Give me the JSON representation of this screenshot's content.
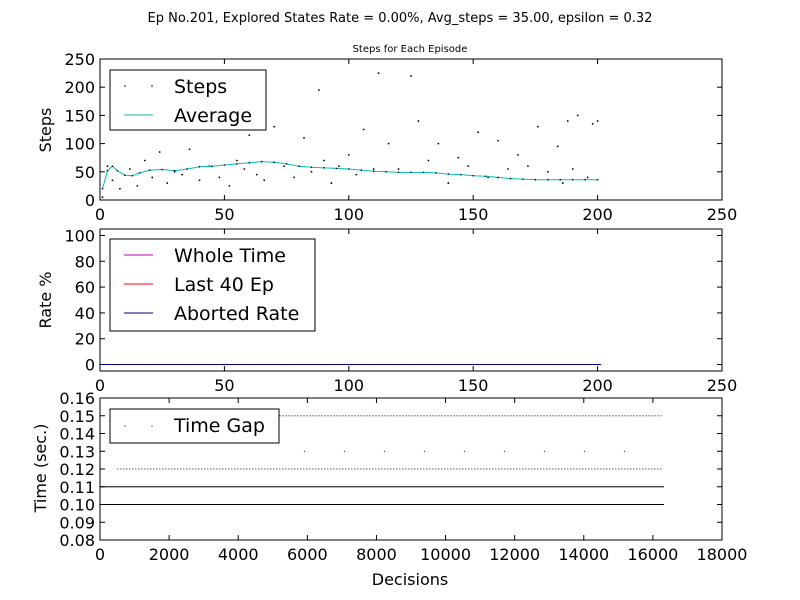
{
  "suptitle": "Ep No.201,  Explored States Rate = 0.00%,  Avg_steps = 35.00, epsilon = 0.32",
  "chart_data": [
    {
      "type": "scatter",
      "title": "Steps for Each Episode",
      "xlabel": "",
      "ylabel": "Steps",
      "xlim": [
        0,
        250
      ],
      "ylim": [
        0,
        250
      ],
      "xticks": [
        "0",
        "50",
        "100",
        "150",
        "200",
        "250"
      ],
      "yticks": [
        "0",
        "50",
        "100",
        "150",
        "200",
        "250"
      ],
      "legend_position": "upper-left",
      "grid": false,
      "series": [
        {
          "name": "Steps",
          "style": "points",
          "color": "#000000",
          "x": [
            1,
            3,
            5,
            8,
            12,
            15,
            18,
            21,
            24,
            27,
            30,
            33,
            36,
            40,
            44,
            48,
            52,
            55,
            58,
            60,
            63,
            66,
            70,
            74,
            78,
            82,
            85,
            88,
            90,
            93,
            96,
            100,
            103,
            106,
            110,
            112,
            116,
            120,
            125,
            128,
            132,
            136,
            140,
            144,
            148,
            152,
            156,
            160,
            164,
            168,
            172,
            176,
            180,
            184,
            186,
            188,
            190,
            192,
            196,
            198,
            200
          ],
          "y": [
            5,
            60,
            35,
            20,
            55,
            25,
            70,
            40,
            85,
            30,
            50,
            45,
            90,
            35,
            60,
            40,
            25,
            70,
            55,
            115,
            45,
            35,
            130,
            60,
            40,
            110,
            50,
            195,
            70,
            30,
            60,
            80,
            45,
            125,
            55,
            225,
            100,
            55,
            220,
            140,
            70,
            100,
            30,
            75,
            60,
            120,
            40,
            105,
            55,
            80,
            60,
            130,
            50,
            95,
            30,
            140,
            55,
            150,
            40,
            135,
            140
          ]
        },
        {
          "name": "Average",
          "style": "line",
          "color": "#00bfbf",
          "x": [
            1,
            3,
            5,
            7,
            10,
            13,
            16,
            20,
            25,
            30,
            35,
            40,
            45,
            50,
            55,
            60,
            65,
            70,
            75,
            80,
            85,
            90,
            95,
            100,
            105,
            110,
            115,
            120,
            125,
            130,
            135,
            140,
            145,
            150,
            155,
            160,
            165,
            170,
            175,
            180,
            185,
            190,
            195,
            200
          ],
          "y": [
            20,
            52,
            60,
            52,
            44,
            43,
            48,
            53,
            54,
            52,
            55,
            59,
            60,
            62,
            64,
            66,
            68,
            67,
            64,
            60,
            58,
            57,
            56,
            55,
            53,
            51,
            50,
            49,
            49,
            49,
            48,
            46,
            45,
            43,
            42,
            40,
            38,
            37,
            36,
            36,
            36,
            36,
            36,
            36
          ]
        }
      ]
    },
    {
      "type": "line",
      "title": "",
      "xlabel": "",
      "ylabel": "Rate %",
      "xlim": [
        0,
        250
      ],
      "ylim": [
        -5,
        105
      ],
      "xticks": [
        "0",
        "50",
        "100",
        "150",
        "200",
        "250"
      ],
      "yticks": [
        "0",
        "20",
        "40",
        "60",
        "80",
        "100"
      ],
      "legend_position": "upper-left",
      "grid": false,
      "series": [
        {
          "name": "Whole Time",
          "color": "#bf00bf",
          "x": [
            1,
            201
          ],
          "y": [
            0,
            0
          ]
        },
        {
          "name": "Last 40 Ep",
          "color": "#ff0000",
          "x": [
            1,
            201
          ],
          "y": [
            0,
            0
          ]
        },
        {
          "name": "Aborted Rate",
          "color": "#000080",
          "x": [
            1,
            201
          ],
          "y": [
            0,
            0
          ]
        }
      ]
    },
    {
      "type": "scatter",
      "title": "",
      "xlabel": "Decisions",
      "ylabel": "Time (sec.)",
      "xlim": [
        0,
        18000
      ],
      "ylim": [
        0.08,
        0.16
      ],
      "xticks": [
        "0",
        "2000",
        "4000",
        "6000",
        "8000",
        "10000",
        "12000",
        "14000",
        "16000",
        "18000"
      ],
      "yticks": [
        "0.08",
        "0.09",
        "0.10",
        "0.11",
        "0.12",
        "0.13",
        "0.14",
        "0.15",
        "0.16"
      ],
      "legend_position": "upper-left",
      "grid": false,
      "series": [
        {
          "name": "Time Gap",
          "style": "points",
          "color": "#000000",
          "levels": [
            {
              "y": 0.15,
              "x_range": [
                4500,
                16300
              ]
            },
            {
              "y": 0.12,
              "x_range": [
                500,
                16300
              ]
            },
            {
              "y": 0.13,
              "x_range": [
                5900,
                15800
              ]
            },
            {
              "y": 0.11,
              "x_range": [
                0,
                16300
              ]
            },
            {
              "y": 0.1,
              "x_range": [
                0,
                16300
              ]
            }
          ]
        }
      ]
    }
  ]
}
